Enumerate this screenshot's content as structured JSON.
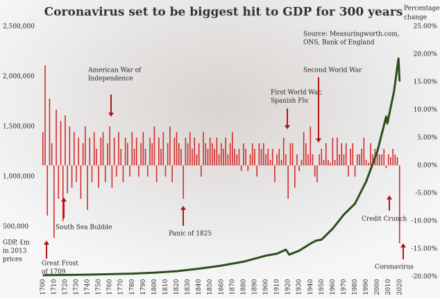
{
  "chart_data": {
    "type": "combo",
    "title": "Coronavirus set to be biggest hit to GDP for 300 years",
    "source": [
      "Source: Measuringworth.com,",
      "ONS, Bank of England"
    ],
    "y_label": [
      "GDP, £m",
      "in 2013",
      "prices"
    ],
    "y2_label": [
      "Percentage",
      "change"
    ],
    "annotations": [
      [
        "Great Frost",
        "of 1709"
      ],
      [
        "South Sea Bubble"
      ],
      [
        "American War of",
        "Independence"
      ],
      [
        "Panic of 1825"
      ],
      [
        "First World War,",
        "Spanish Flu"
      ],
      [
        "Second World War"
      ],
      [
        "Credit Crunch"
      ],
      [
        "Coronavirus"
      ]
    ],
    "annotation_color": "#b01515",
    "xlim": [
      1697,
      2027
    ],
    "xticks": [
      1700,
      1710,
      1720,
      1730,
      1740,
      1750,
      1760,
      1770,
      1780,
      1790,
      1800,
      1810,
      1820,
      1830,
      1840,
      1850,
      1860,
      1870,
      1880,
      1890,
      1900,
      1910,
      1920,
      1930,
      1940,
      1950,
      1960,
      1970,
      1980,
      1990,
      2000,
      2010,
      2020
    ],
    "ylim": [
      0,
      2500000
    ],
    "yticks": [
      {
        "value": 500000,
        "label": "500,000"
      },
      {
        "value": 1000000,
        "label": "1,000,000"
      },
      {
        "value": 1500000,
        "label": "1,500,000"
      },
      {
        "value": 2000000,
        "label": "2,000,000"
      },
      {
        "value": 2500000,
        "label": "2,500,000"
      }
    ],
    "y2lim": [
      -20,
      25
    ],
    "y2ticks": [
      {
        "value": -20,
        "label": "-20.00%"
      },
      {
        "value": -15,
        "label": "-15.00%"
      },
      {
        "value": -10,
        "label": "-10.00%"
      },
      {
        "value": -5,
        "label": "-5.00%"
      },
      {
        "value": 0,
        "label": "0.00%"
      },
      {
        "value": 5,
        "label": "5.00%"
      },
      {
        "value": 10,
        "label": "10.00%"
      },
      {
        "value": 15,
        "label": "15.00%"
      },
      {
        "value": 20,
        "label": "20.00%"
      },
      {
        "value": 25,
        "label": "25.00%"
      }
    ],
    "series": [
      {
        "type": "bar",
        "axis": "y2",
        "color": "#d42a2a",
        "x": [
          1700,
          1702,
          1704,
          1706,
          1708,
          1710,
          1712,
          1714,
          1716,
          1718,
          1720,
          1722,
          1724,
          1726,
          1728,
          1730,
          1732,
          1734,
          1736,
          1738,
          1740,
          1742,
          1744,
          1746,
          1748,
          1750,
          1752,
          1754,
          1756,
          1758,
          1760,
          1762,
          1764,
          1766,
          1768,
          1770,
          1772,
          1774,
          1776,
          1778,
          1780,
          1782,
          1784,
          1786,
          1788,
          1790,
          1792,
          1794,
          1796,
          1798,
          1800,
          1802,
          1804,
          1806,
          1808,
          1810,
          1812,
          1814,
          1816,
          1818,
          1820,
          1822,
          1824,
          1826,
          1828,
          1830,
          1832,
          1834,
          1836,
          1838,
          1840,
          1842,
          1844,
          1846,
          1848,
          1850,
          1852,
          1854,
          1856,
          1858,
          1860,
          1862,
          1864,
          1866,
          1868,
          1870,
          1872,
          1874,
          1876,
          1878,
          1880,
          1882,
          1884,
          1886,
          1888,
          1890,
          1892,
          1894,
          1896,
          1898,
          1900,
          1902,
          1904,
          1906,
          1908,
          1910,
          1912,
          1914,
          1916,
          1918,
          1920,
          1922,
          1924,
          1926,
          1928,
          1930,
          1932,
          1934,
          1936,
          1938,
          1940,
          1942,
          1944,
          1946,
          1948,
          1950,
          1952,
          1954,
          1956,
          1958,
          1960,
          1962,
          1964,
          1966,
          1968,
          1970,
          1972,
          1974,
          1976,
          1978,
          1980,
          1982,
          1984,
          1986,
          1988,
          1990,
          1992,
          1994,
          1996,
          1998,
          2000,
          2002,
          2004,
          2006,
          2008,
          2010,
          2012,
          2014,
          2016,
          2018,
          2020
        ],
        "values": [
          6,
          18,
          -9,
          12,
          4,
          -13,
          10,
          -6,
          8,
          -10,
          9,
          -5,
          7,
          -4,
          6,
          -3,
          5,
          -6,
          4,
          7,
          -8,
          5,
          -3,
          6,
          3,
          -4,
          5,
          6,
          -3,
          4,
          7,
          -4,
          5,
          -2,
          6,
          3,
          -3,
          5,
          4,
          -2,
          6,
          3,
          5,
          -2,
          4,
          6,
          3,
          -2,
          5,
          4,
          7,
          -3,
          5,
          3,
          6,
          -2,
          4,
          7,
          -3,
          5,
          6,
          4,
          3,
          -6,
          5,
          4,
          6,
          3,
          5,
          2,
          4,
          -2,
          6,
          4,
          3,
          5,
          4,
          3,
          5,
          2,
          4,
          3,
          5,
          2,
          4,
          6,
          3,
          2,
          3,
          -1,
          4,
          3,
          -1,
          2,
          4,
          3,
          -2,
          4,
          3,
          4,
          2,
          3,
          1,
          3,
          -3,
          2,
          3,
          1,
          5,
          2,
          -6,
          4,
          4,
          -4,
          2,
          -1,
          1,
          6,
          4,
          2,
          7,
          2,
          -2,
          -3,
          2,
          3,
          1,
          4,
          1,
          0.5,
          5,
          1,
          5,
          2,
          4,
          2,
          4,
          -2,
          3,
          4,
          -2,
          2,
          2,
          3,
          5,
          1,
          0.5,
          4,
          2,
          3,
          3,
          2,
          2,
          3,
          -0.5,
          2,
          1.5,
          3,
          2,
          1.5,
          -14
        ]
      },
      {
        "type": "line",
        "color": "#2f4d1c",
        "x": [
          1700,
          1720,
          1740,
          1760,
          1780,
          1800,
          1820,
          1840,
          1860,
          1880,
          1900,
          1910,
          1913,
          1918,
          1921,
          1930,
          1940,
          1945,
          1950,
          1960,
          1970,
          1980,
          1990,
          2000,
          2008,
          2009,
          2015,
          2019,
          2020
        ],
        "values": [
          15000,
          17000,
          20000,
          25000,
          30000,
          40000,
          55000,
          80000,
          110000,
          150000,
          210000,
          230000,
          245000,
          270000,
          220000,
          260000,
          330000,
          360000,
          370000,
          480000,
          620000,
          730000,
          950000,
          1250000,
          1600000,
          1530000,
          1850000,
          2180000,
          1950000
        ]
      }
    ]
  }
}
